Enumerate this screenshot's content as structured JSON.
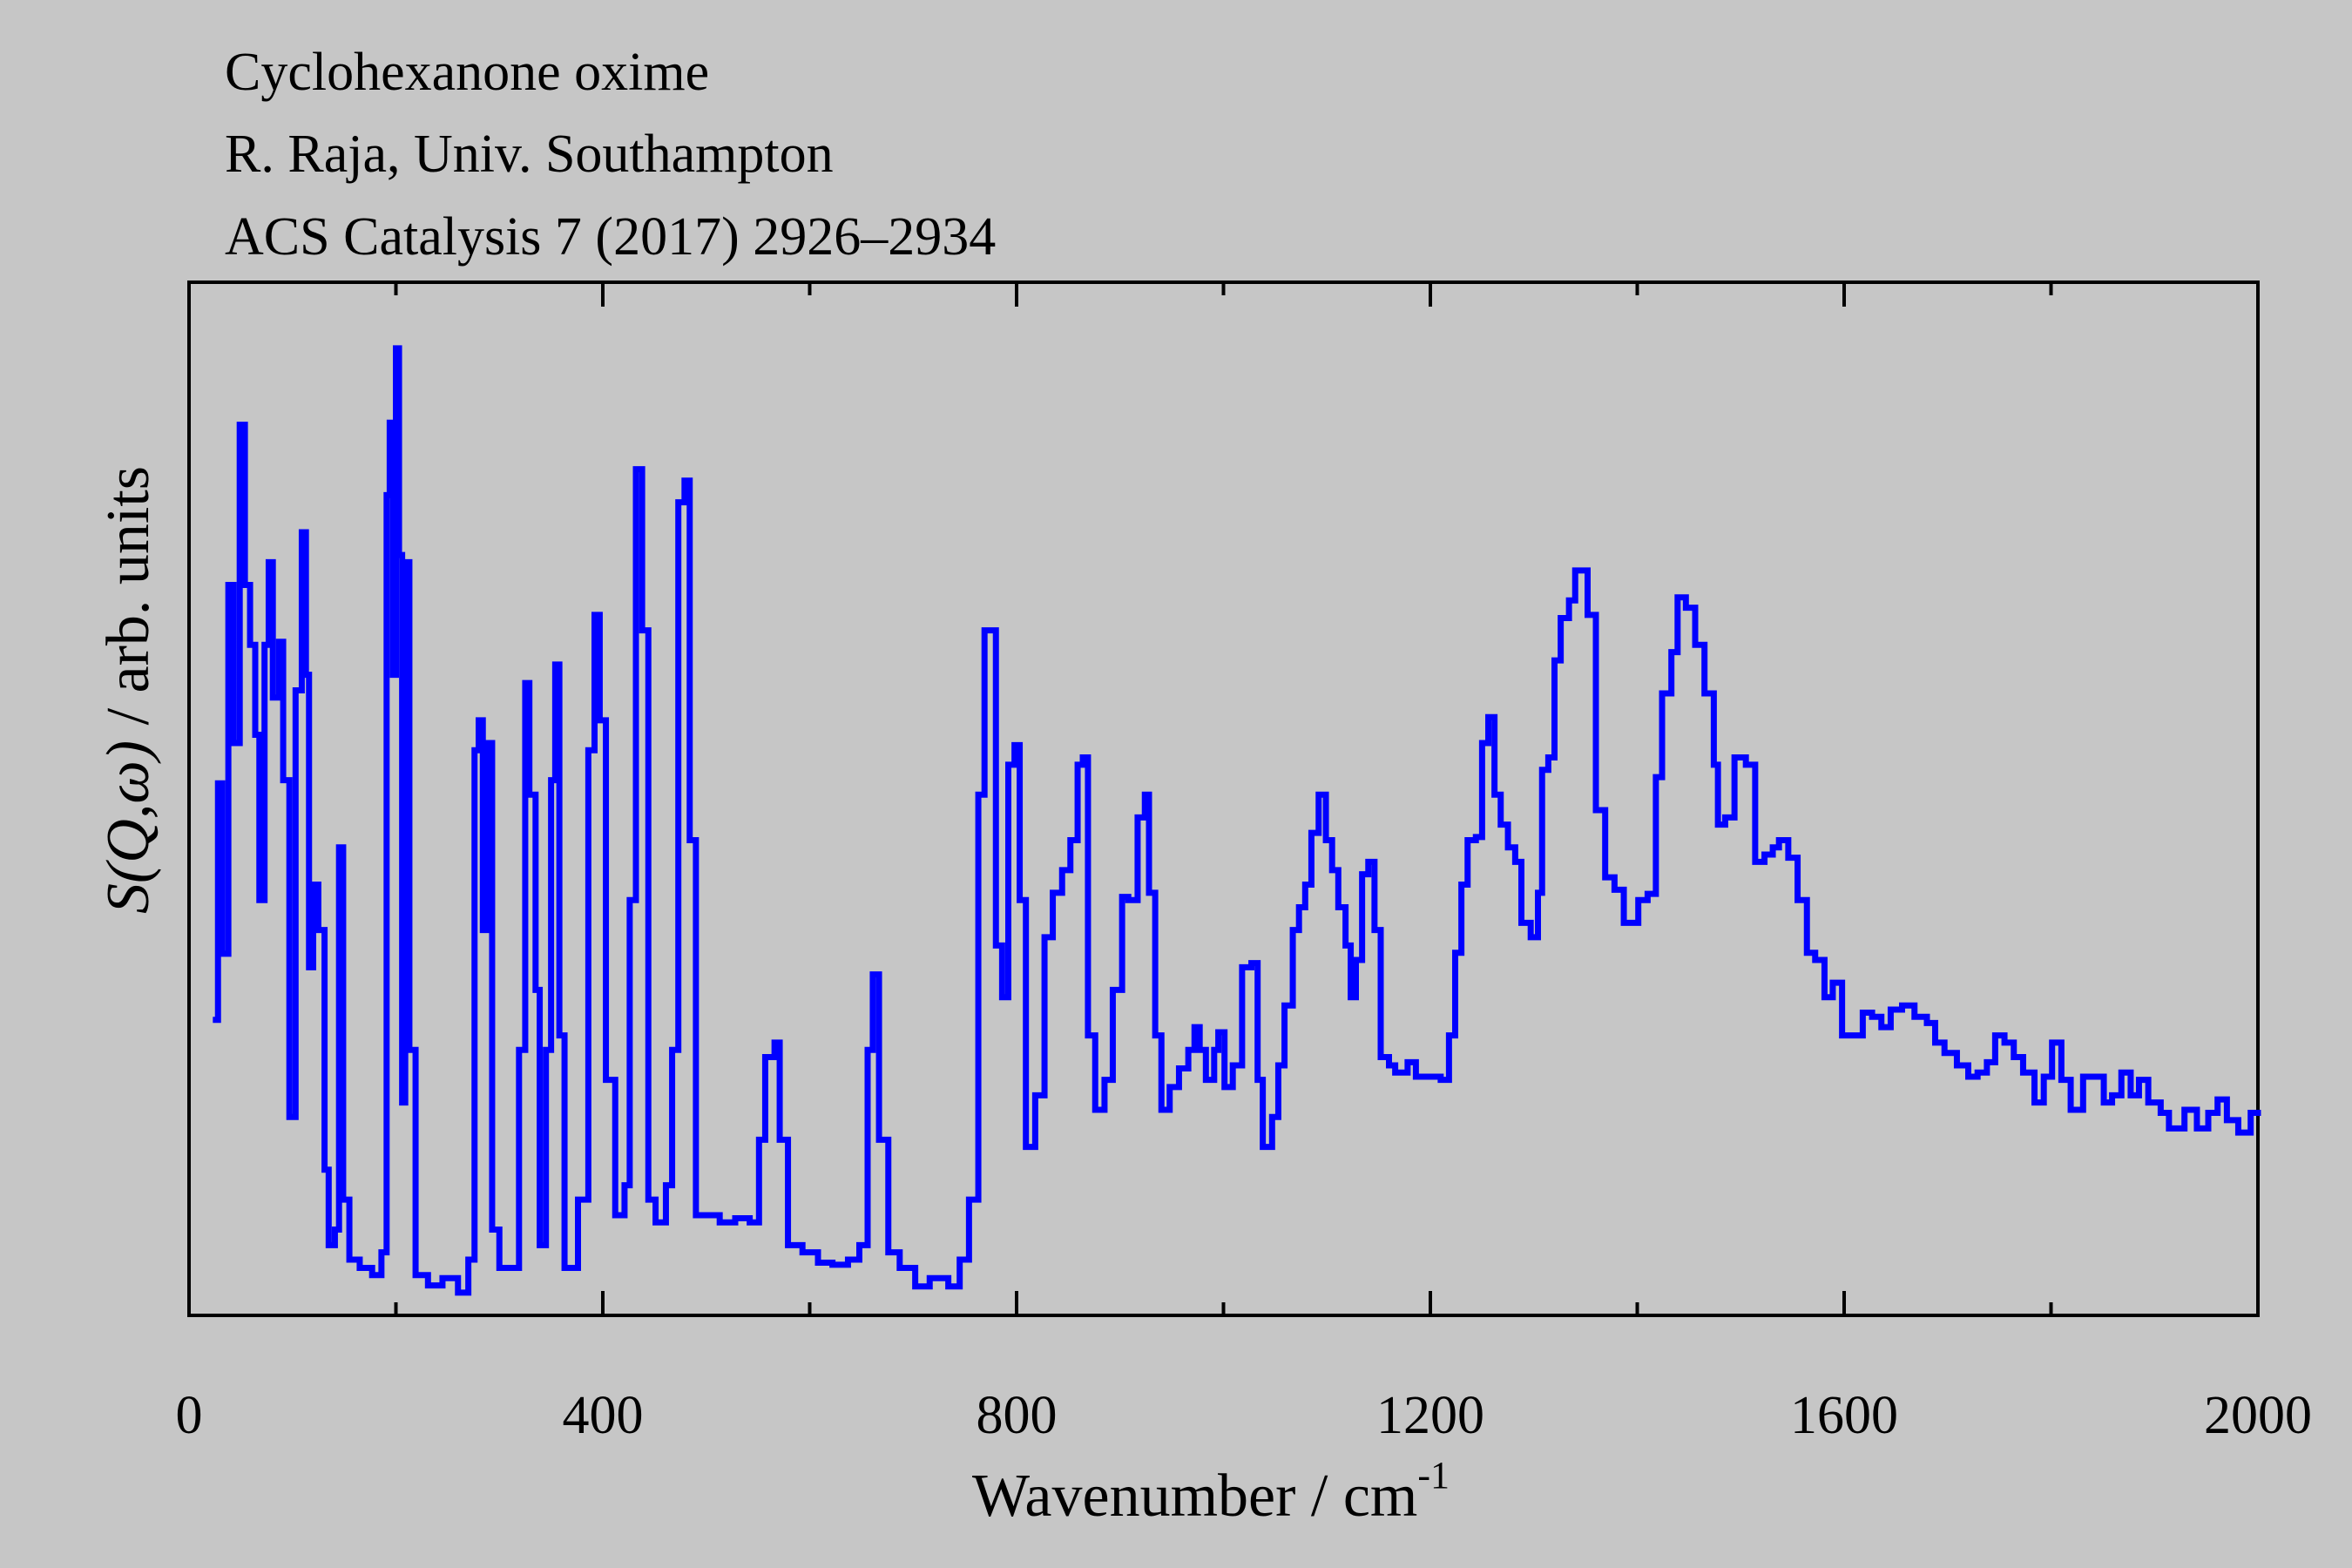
{
  "chart_data": {
    "type": "line",
    "title_lines": [
      "Cyclohexanone oxime",
      "R. Raja, Univ. Southampton",
      "ACS Catalysis 7 (2017) 2926–2934"
    ],
    "xlabel": "Wavenumber / cm",
    "xlabel_superscript": "-1",
    "ylabel_italic": "S(Q,ω)",
    "ylabel_rest": " / arb. units",
    "xlim": [
      0,
      2000
    ],
    "ylim": [
      0,
      100
    ],
    "xticks": [
      0,
      400,
      800,
      1200,
      1600,
      2000
    ],
    "xtick_labels": [
      "0",
      "400",
      "800",
      "1200",
      "1600",
      "2000"
    ],
    "minor_xticks": [
      200,
      600,
      1000,
      1400,
      1800
    ],
    "grid": false,
    "line_color": "#0000ff",
    "series": [
      {
        "name": "Cyclohexanone oxime",
        "x": [
          23,
          28,
          32,
          38,
          43,
          49,
          54,
          59,
          64,
          68,
          73,
          77,
          81,
          87,
          91,
          97,
          103,
          109,
          113,
          116,
          120,
          125,
          131,
          135,
          141,
          145,
          149,
          155,
          165,
          177,
          186,
          191,
          194,
          197,
          200,
          203,
          206,
          209,
          213,
          219,
          231,
          245,
          260,
          270,
          276,
          280,
          284,
          289,
          293,
          300,
          310,
          319,
          325,
          329,
          335,
          339,
          345,
          350,
          354,
          358,
          363,
          376,
          386,
          392,
          397,
          403,
          412,
          421,
          426,
          432,
          438,
          444,
          451,
          461,
          467,
          473,
          479,
          484,
          490,
          499,
          513,
          528,
          542,
          551,
          557,
          566,
          571,
          579,
          593,
          608,
          622,
          637,
          648,
          656,
          661,
          667,
          676,
          687,
          702,
          716,
          734,
          745,
          754,
          763,
          769,
          774,
          780,
          786,
          792,
          798,
          803,
          809,
          818,
          827,
          835,
          844,
          852,
          859,
          864,
          869,
          876,
          885,
          893,
          902,
          908,
          917,
          924,
          928,
          934,
          940,
          948,
          957,
          966,
          972,
          977,
          983,
          991,
          995,
          1001,
          1009,
          1018,
          1027,
          1033,
          1038,
          1047,
          1053,
          1059,
          1067,
          1073,
          1079,
          1085,
          1092,
          1099,
          1105,
          1111,
          1118,
          1123,
          1128,
          1134,
          1140,
          1146,
          1152,
          1160,
          1166,
          1178,
          1186,
          1195,
          1210,
          1218,
          1224,
          1230,
          1236,
          1244,
          1250,
          1256,
          1262,
          1268,
          1275,
          1282,
          1288,
          1297,
          1304,
          1308,
          1314,
          1320,
          1326,
          1334,
          1340,
          1346,
          1352,
          1360,
          1369,
          1378,
          1387,
          1395,
          1401,
          1410,
          1418,
          1424,
          1433,
          1439,
          1447,
          1456,
          1465,
          1474,
          1478,
          1485,
          1494,
          1505,
          1514,
          1523,
          1531,
          1537,
          1546,
          1555,
          1564,
          1572,
          1581,
          1589,
          1598,
          1610,
          1618,
          1627,
          1636,
          1645,
          1656,
          1668,
          1680,
          1688,
          1697,
          1709,
          1720,
          1729,
          1738,
          1746,
          1755,
          1764,
          1773,
          1784,
          1793,
          1801,
          1810,
          1819,
          1831,
          1842,
          1851,
          1859,
          1868,
          1877,
          1885,
          1894,
          1906,
          1914,
          1929,
          1941,
          1952,
          1961,
          1970,
          1981,
          1993,
          2000
        ],
        "y": [
          28.6,
          51.5,
          35,
          70.7,
          55.4,
          86.2,
          70.7,
          64.9,
          56.2,
          40.2,
          64.9,
          72.9,
          59.8,
          65.2,
          51.8,
          19.2,
          60.5,
          75.8,
          62,
          33.7,
          41.7,
          37.3,
          14.1,
          6.8,
          8.3,
          45.3,
          11.2,
          5.4,
          4.6,
          3.9,
          6.1,
          79.4,
          86.4,
          62,
          93.6,
          73.6,
          20.6,
          72.9,
          25.7,
          3.9,
          2.9,
          3.6,
          2.2,
          5.4,
          54.7,
          57.6,
          37.3,
          55.4,
          8.3,
          4.6,
          4.6,
          25.7,
          61.2,
          50.4,
          31.5,
          6.8,
          25.7,
          51.8,
          63,
          27.1,
          4.6,
          11.2,
          54.7,
          67.8,
          57.6,
          22.8,
          9.7,
          12.6,
          40.2,
          81.9,
          66.3,
          11.2,
          9,
          12.6,
          25.7,
          78.7,
          80.8,
          46,
          9.7,
          9.7,
          9,
          9.4,
          9,
          17,
          25,
          26.4,
          17,
          6.8,
          6.1,
          5.1,
          4.9,
          5.4,
          6.8,
          25.7,
          33,
          17,
          6.1,
          4.6,
          2.8,
          3.6,
          2.8,
          5.4,
          11.2,
          50.4,
          66.3,
          66.3,
          35.8,
          30.8,
          53.3,
          55.2,
          40.2,
          16.3,
          21.3,
          36.6,
          40.9,
          43.1,
          46,
          53.3,
          54,
          27.1,
          19.9,
          22.8,
          31.5,
          40.5,
          40.2,
          48.2,
          50.4,
          40.9,
          27.1,
          19.9,
          22.1,
          23.9,
          25.7,
          27.9,
          25.7,
          22.8,
          25.7,
          27.4,
          22.1,
          24.2,
          33.7,
          34.1,
          22.8,
          16.3,
          19.2,
          24.2,
          30,
          37.3,
          39.5,
          41.7,
          46.7,
          50.4,
          46,
          43.1,
          39.5,
          35.8,
          30.8,
          34.4,
          42.7,
          43.9,
          37.3,
          25,
          24.2,
          23.5,
          24.5,
          23.1,
          23.1,
          22.8,
          27.1,
          35.1,
          41.7,
          46,
          46.3,
          55.4,
          57.9,
          50.4,
          47.5,
          45.3,
          43.9,
          38,
          36.6,
          40.9,
          52.8,
          54,
          63.4,
          67.5,
          69.2,
          72.1,
          72.1,
          67.8,
          48.9,
          42.4,
          41.2,
          38,
          38,
          40.2,
          40.8,
          52.1,
          60.2,
          64.2,
          69.5,
          68.5,
          64.9,
          60.2,
          53.3,
          47.5,
          48.2,
          54,
          53.3,
          43.9,
          44.6,
          45.3,
          46,
          44.3,
          40.2,
          35.1,
          34.4,
          30.8,
          32.2,
          27.1,
          27.1,
          29.3,
          28.9,
          27.9,
          29.6,
          30,
          28.9,
          28.3,
          26.4,
          25.4,
          24.2,
          23.1,
          23.5,
          24.5,
          27.1,
          26.4,
          25,
          23.5,
          20.6,
          23.1,
          26.4,
          22.8,
          19.9,
          23.1,
          23.1,
          20.6,
          21.3,
          23.5,
          21.3,
          22.8,
          20.6,
          19.6,
          18.1,
          19.9,
          18.1,
          19.6,
          20.9,
          18.9,
          17.7,
          19.6,
          19.9
        ]
      }
    ]
  }
}
